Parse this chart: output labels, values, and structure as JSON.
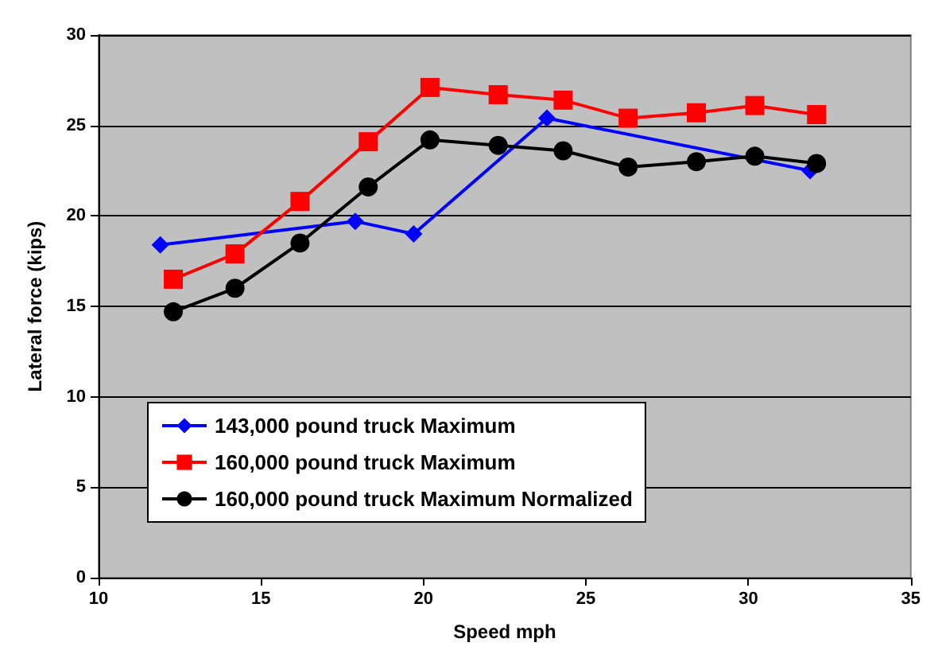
{
  "chart_data": {
    "type": "line",
    "xlabel": "Speed mph",
    "ylabel": "Lateral force (kips)",
    "xlim": [
      10,
      35
    ],
    "xticks": [
      10,
      15,
      20,
      25,
      30,
      35
    ],
    "ylim": [
      0,
      30
    ],
    "yticks": [
      0,
      5,
      10,
      15,
      20,
      25,
      30
    ],
    "grid": "y",
    "legend": "bottom left",
    "line_style": "solid",
    "series": [
      {
        "name": "143,000 pound truck Maximum",
        "color": "#0000ff",
        "marker": "diamond",
        "x": [
          11.9,
          17.9,
          19.7,
          23.8,
          31.9
        ],
        "values": [
          18.4,
          19.7,
          19.0,
          25.4,
          22.5
        ]
      },
      {
        "name": "160,000 pound truck Maximum",
        "color": "#ff0000",
        "marker": "square",
        "x": [
          12.3,
          14.2,
          16.2,
          18.3,
          20.2,
          22.3,
          24.3,
          26.3,
          28.4,
          30.2,
          32.1
        ],
        "values": [
          16.5,
          17.9,
          20.8,
          24.1,
          27.1,
          26.7,
          26.4,
          25.4,
          25.7,
          26.1,
          25.6
        ]
      },
      {
        "name": "160,000 pound truck Maximum Normalized",
        "color": "#000000",
        "marker": "circle",
        "x": [
          12.3,
          14.2,
          16.2,
          18.3,
          20.2,
          22.3,
          24.3,
          26.3,
          28.4,
          30.2,
          32.1
        ],
        "values": [
          14.7,
          16.0,
          18.5,
          21.6,
          24.2,
          23.9,
          23.6,
          22.7,
          23.0,
          23.3,
          22.9
        ]
      }
    ]
  }
}
